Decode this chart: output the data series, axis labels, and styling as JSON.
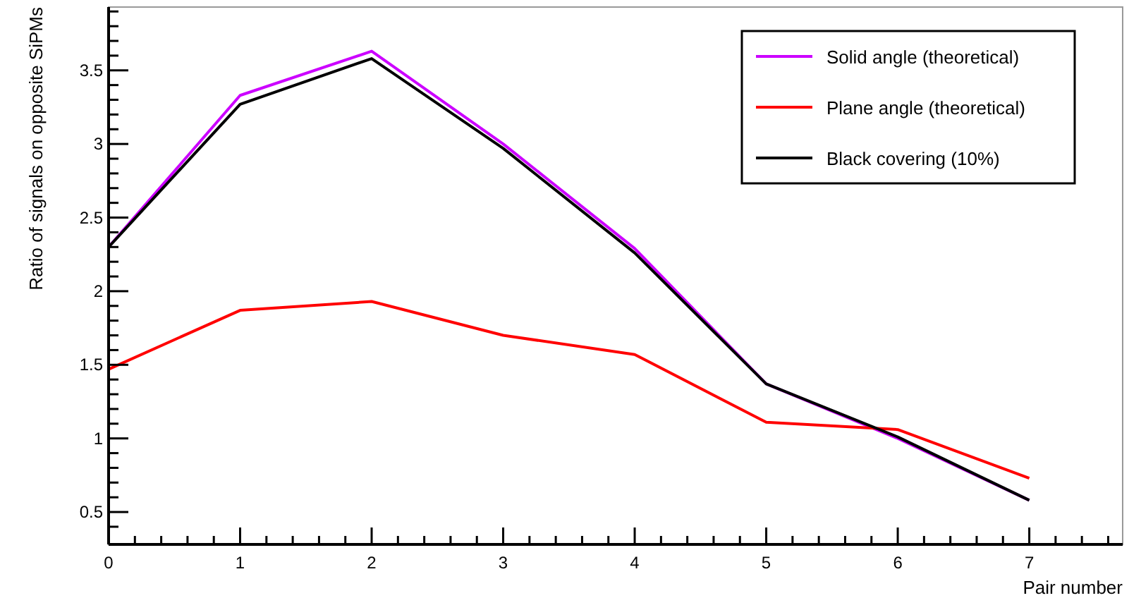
{
  "chart_data": {
    "type": "line",
    "xlabel": "Pair number",
    "ylabel": "Ratio of signals on opposite SiPMs",
    "x": [
      0,
      1,
      2,
      3,
      4,
      5,
      6,
      7
    ],
    "series": [
      {
        "name": "Solid angle (theoretical)",
        "color": "#cc00ff",
        "values": [
          2.3,
          3.33,
          3.63,
          3.0,
          2.29,
          1.37,
          1.0,
          0.58
        ]
      },
      {
        "name": "Plane angle (theoretical)",
        "color": "#ff0000",
        "values": [
          1.47,
          1.87,
          1.93,
          1.7,
          1.57,
          1.11,
          1.06,
          0.73
        ]
      },
      {
        "name": "Black covering (10%)",
        "color": "#000000",
        "values": [
          2.3,
          3.27,
          3.58,
          2.97,
          2.26,
          1.37,
          1.01,
          0.58
        ]
      }
    ],
    "xlim": [
      0,
      7.71
    ],
    "ylim": [
      0.28,
      3.93
    ],
    "xticks": [
      0,
      {
        "value": 0.2,
        "label": null
      },
      {
        "value": 0.4,
        "label": null
      },
      {
        "value": 0.6,
        "label": null
      },
      {
        "value": 0.8,
        "label": null
      },
      1,
      {
        "value": 1.2,
        "label": null
      },
      {
        "value": 1.4,
        "label": null
      },
      {
        "value": 1.6,
        "label": null
      },
      {
        "value": 1.8,
        "label": null
      },
      2,
      {
        "value": 2.2,
        "label": null
      },
      {
        "value": 2.4,
        "label": null
      },
      {
        "value": 2.6,
        "label": null
      },
      {
        "value": 2.8,
        "label": null
      },
      3,
      {
        "value": 3.2,
        "label": null
      },
      {
        "value": 3.4,
        "label": null
      },
      {
        "value": 3.6,
        "label": null
      },
      {
        "value": 3.8,
        "label": null
      },
      4,
      {
        "value": 4.2,
        "label": null
      },
      {
        "value": 4.4,
        "label": null
      },
      {
        "value": 4.6,
        "label": null
      },
      {
        "value": 4.8,
        "label": null
      },
      5,
      {
        "value": 5.2,
        "label": null
      },
      {
        "value": 5.4,
        "label": null
      },
      {
        "value": 5.6,
        "label": null
      },
      {
        "value": 5.8,
        "label": null
      },
      6,
      {
        "value": 6.2,
        "label": null
      },
      {
        "value": 6.4,
        "label": null
      },
      {
        "value": 6.6,
        "label": null
      },
      {
        "value": 6.8,
        "label": null
      },
      7,
      {
        "value": 7.2,
        "label": null
      },
      {
        "value": 7.4,
        "label": null
      },
      {
        "value": 7.6,
        "label": null
      }
    ],
    "yticks": [
      {
        "value": 0.4,
        "label": null
      },
      0.5,
      {
        "value": 0.6,
        "label": null
      },
      {
        "value": 0.7,
        "label": null
      },
      {
        "value": 0.8,
        "label": null
      },
      {
        "value": 0.9,
        "label": null
      },
      1,
      {
        "value": 1.1,
        "label": null
      },
      {
        "value": 1.2,
        "label": null
      },
      {
        "value": 1.3,
        "label": null
      },
      {
        "value": 1.4,
        "label": null
      },
      1.5,
      {
        "value": 1.6,
        "label": null
      },
      {
        "value": 1.7,
        "label": null
      },
      {
        "value": 1.8,
        "label": null
      },
      {
        "value": 1.9,
        "label": null
      },
      2,
      {
        "value": 2.1,
        "label": null
      },
      {
        "value": 2.2,
        "label": null
      },
      {
        "value": 2.3,
        "label": null
      },
      {
        "value": 2.4,
        "label": null
      },
      2.5,
      {
        "value": 2.6,
        "label": null
      },
      {
        "value": 2.7,
        "label": null
      },
      {
        "value": 2.8,
        "label": null
      },
      {
        "value": 2.9,
        "label": null
      },
      3,
      {
        "value": 3.1,
        "label": null
      },
      {
        "value": 3.2,
        "label": null
      },
      {
        "value": 3.3,
        "label": null
      },
      {
        "value": 3.4,
        "label": null
      },
      3.5,
      {
        "value": 3.6,
        "label": null
      },
      {
        "value": 3.7,
        "label": null
      },
      {
        "value": 3.8,
        "label": null
      },
      {
        "value": 3.9,
        "label": null
      }
    ],
    "legend": "top right",
    "line_style": "solid"
  }
}
